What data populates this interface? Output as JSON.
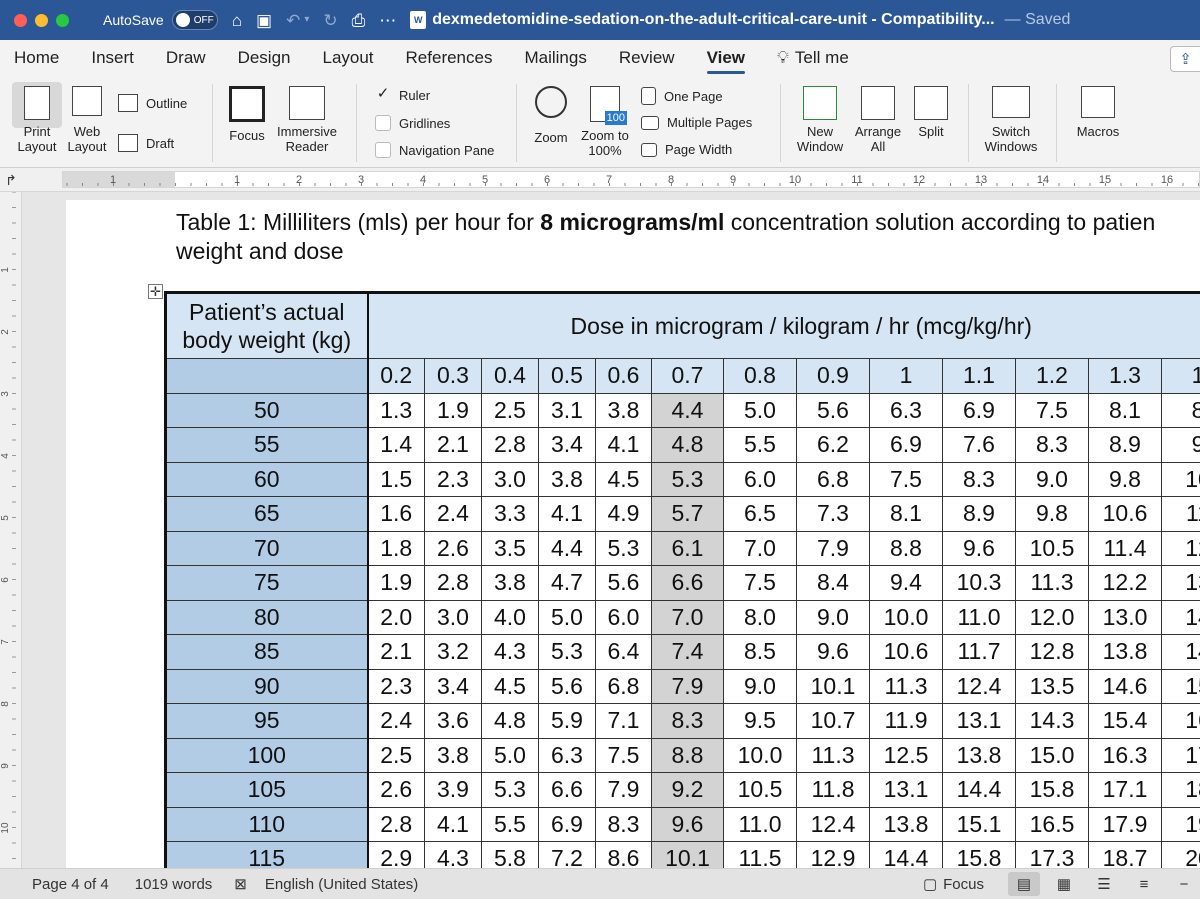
{
  "titlebar": {
    "autosave_label": "AutoSave",
    "toggle_label": "OFF",
    "doc_badge": "W",
    "doc_title": "dexmedetomidine-sedation-on-the-adult-critical-care-unit - Compatibility...",
    "saved_label": "— Saved"
  },
  "tabs": [
    "Home",
    "Insert",
    "Draw",
    "Design",
    "Layout",
    "References",
    "Mailings",
    "Review",
    "View",
    "Tell me"
  ],
  "ribbon": {
    "print_layout": "Print Layout",
    "web_layout": "Web Layout",
    "outline": "Outline",
    "draft": "Draft",
    "focus": "Focus",
    "immersive_reader": "Immersive Reader",
    "ruler": "Ruler",
    "gridlines": "Gridlines",
    "navigation_pane": "Navigation Pane",
    "zoom": "Zoom",
    "zoom_100": "Zoom to 100%",
    "zoom_100_badge": "100",
    "one_page": "One Page",
    "multiple_pages": "Multiple Pages",
    "page_width": "Page Width",
    "new_window": "New Window",
    "arrange_all": "Arrange All",
    "split": "Split",
    "switch_windows": "Switch Windows",
    "macros": "Macros"
  },
  "ruler": {
    "h_numbers": [
      "1",
      "1",
      "2",
      "3",
      "4",
      "5",
      "6",
      "7",
      "8",
      "9",
      "10",
      "11",
      "12",
      "13",
      "14",
      "15",
      "16"
    ],
    "v_numbers": [
      "1",
      "2",
      "3",
      "4",
      "5",
      "6",
      "7",
      "8",
      "9",
      "10"
    ]
  },
  "document": {
    "caption_prefix": "Table 1:  Milliliters (mls) per hour for ",
    "caption_bold": "8 micrograms/ml",
    "caption_suffix": " concentration solution according to patien",
    "caption_line2": "weight and dose",
    "table": {
      "weight_header": "Patient’s actual body weight (kg)",
      "dose_header": "Dose in microgram / kilogram / hr (mcg/kg/hr)",
      "dose_columns": [
        "0.2",
        "0.3",
        "0.4",
        "0.5",
        "0.6",
        "0.7",
        "0.8",
        "0.9",
        "1",
        "1.1",
        "1.2",
        "1.3",
        "1"
      ],
      "highlight_column": "0.7",
      "rows": [
        {
          "weight": "50",
          "values": [
            "1.3",
            "1.9",
            "2.5",
            "3.1",
            "3.8",
            "4.4",
            "5.0",
            "5.6",
            "6.3",
            "6.9",
            "7.5",
            "8.1",
            "8"
          ]
        },
        {
          "weight": "55",
          "values": [
            "1.4",
            "2.1",
            "2.8",
            "3.4",
            "4.1",
            "4.8",
            "5.5",
            "6.2",
            "6.9",
            "7.6",
            "8.3",
            "8.9",
            "9"
          ]
        },
        {
          "weight": "60",
          "values": [
            "1.5",
            "2.3",
            "3.0",
            "3.8",
            "4.5",
            "5.3",
            "6.0",
            "6.8",
            "7.5",
            "8.3",
            "9.0",
            "9.8",
            "10"
          ]
        },
        {
          "weight": "65",
          "values": [
            "1.6",
            "2.4",
            "3.3",
            "4.1",
            "4.9",
            "5.7",
            "6.5",
            "7.3",
            "8.1",
            "8.9",
            "9.8",
            "10.6",
            "11"
          ]
        },
        {
          "weight": "70",
          "values": [
            "1.8",
            "2.6",
            "3.5",
            "4.4",
            "5.3",
            "6.1",
            "7.0",
            "7.9",
            "8.8",
            "9.6",
            "10.5",
            "11.4",
            "12"
          ]
        },
        {
          "weight": "75",
          "values": [
            "1.9",
            "2.8",
            "3.8",
            "4.7",
            "5.6",
            "6.6",
            "7.5",
            "8.4",
            "9.4",
            "10.3",
            "11.3",
            "12.2",
            "13"
          ]
        },
        {
          "weight": "80",
          "values": [
            "2.0",
            "3.0",
            "4.0",
            "5.0",
            "6.0",
            "7.0",
            "8.0",
            "9.0",
            "10.0",
            "11.0",
            "12.0",
            "13.0",
            "14"
          ]
        },
        {
          "weight": "85",
          "values": [
            "2.1",
            "3.2",
            "4.3",
            "5.3",
            "6.4",
            "7.4",
            "8.5",
            "9.6",
            "10.6",
            "11.7",
            "12.8",
            "13.8",
            "14"
          ]
        },
        {
          "weight": "90",
          "values": [
            "2.3",
            "3.4",
            "4.5",
            "5.6",
            "6.8",
            "7.9",
            "9.0",
            "10.1",
            "11.3",
            "12.4",
            "13.5",
            "14.6",
            "15"
          ]
        },
        {
          "weight": "95",
          "values": [
            "2.4",
            "3.6",
            "4.8",
            "5.9",
            "7.1",
            "8.3",
            "9.5",
            "10.7",
            "11.9",
            "13.1",
            "14.3",
            "15.4",
            "16"
          ]
        },
        {
          "weight": "100",
          "values": [
            "2.5",
            "3.8",
            "5.0",
            "6.3",
            "7.5",
            "8.8",
            "10.0",
            "11.3",
            "12.5",
            "13.8",
            "15.0",
            "16.3",
            "17"
          ]
        },
        {
          "weight": "105",
          "values": [
            "2.6",
            "3.9",
            "5.3",
            "6.6",
            "7.9",
            "9.2",
            "10.5",
            "11.8",
            "13.1",
            "14.4",
            "15.8",
            "17.1",
            "18"
          ]
        },
        {
          "weight": "110",
          "values": [
            "2.8",
            "4.1",
            "5.5",
            "6.9",
            "8.3",
            "9.6",
            "11.0",
            "12.4",
            "13.8",
            "15.1",
            "16.5",
            "17.9",
            "19"
          ]
        },
        {
          "weight": "115",
          "values": [
            "2.9",
            "4.3",
            "5.8",
            "7.2",
            "8.6",
            "10.1",
            "11.5",
            "12.9",
            "14.4",
            "15.8",
            "17.3",
            "18.7",
            "20"
          ]
        }
      ]
    }
  },
  "statusbar": {
    "page": "Page 4 of 4",
    "words": "1019 words",
    "language": "English (United States)",
    "focus": "Focus"
  },
  "colors": {
    "titlebar": "#2b5797",
    "weight_column": "#b3cce6",
    "header_row": "#d6e5f3",
    "highlight_column": "#d3d3d3"
  }
}
